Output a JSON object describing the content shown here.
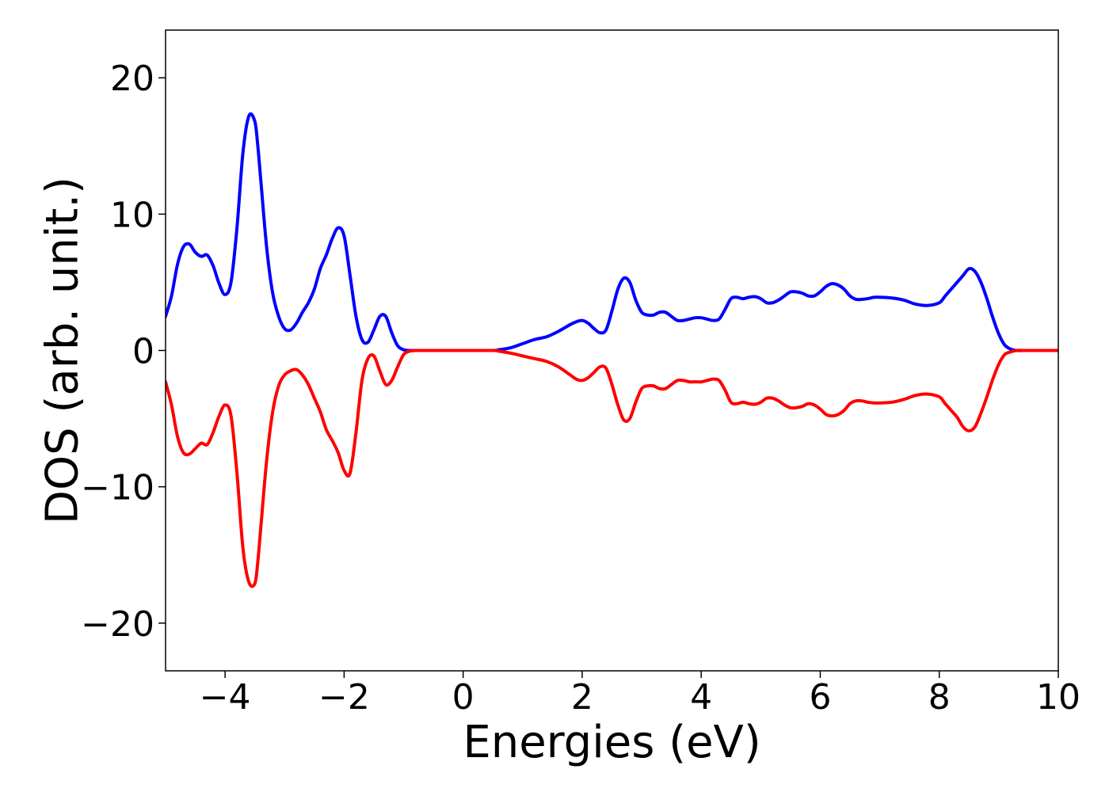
{
  "chart_data": {
    "type": "line",
    "title": "",
    "xlabel": "Energies (eV)",
    "ylabel": "DOS (arb. unit.)",
    "xlim": [
      -5,
      10
    ],
    "ylim": [
      -23.5,
      23.5
    ],
    "xticks": [
      -4,
      -2,
      0,
      2,
      4,
      6,
      8,
      10
    ],
    "yticks": [
      -20,
      -10,
      0,
      10,
      20
    ],
    "xtick_labels": [
      "−4",
      "−2",
      "0",
      "2",
      "4",
      "6",
      "8",
      "10"
    ],
    "ytick_labels": [
      "−20",
      "−10",
      "0",
      "10",
      "20"
    ],
    "grid": false,
    "legend": "none",
    "series": [
      {
        "color": "#0000ff",
        "x": [
          -5.0,
          -4.9,
          -4.8,
          -4.7,
          -4.6,
          -4.5,
          -4.4,
          -4.3,
          -4.2,
          -4.1,
          -4.0,
          -3.9,
          -3.8,
          -3.7,
          -3.6,
          -3.5,
          -3.45,
          -3.4,
          -3.3,
          -3.2,
          -3.1,
          -3.0,
          -2.9,
          -2.8,
          -2.7,
          -2.6,
          -2.5,
          -2.4,
          -2.3,
          -2.2,
          -2.1,
          -2.0,
          -1.9,
          -1.8,
          -1.7,
          -1.6,
          -1.5,
          -1.4,
          -1.3,
          -1.2,
          -1.1,
          -1.0,
          -0.9,
          -0.8,
          -0.7,
          -0.6,
          -0.5,
          -0.4,
          0.0,
          0.5,
          0.6,
          0.8,
          1.0,
          1.2,
          1.4,
          1.6,
          1.8,
          1.9,
          2.0,
          2.1,
          2.2,
          2.3,
          2.4,
          2.5,
          2.6,
          2.7,
          2.8,
          2.9,
          3.0,
          3.1,
          3.2,
          3.3,
          3.4,
          3.5,
          3.6,
          3.7,
          3.8,
          3.9,
          4.0,
          4.1,
          4.2,
          4.3,
          4.4,
          4.5,
          4.6,
          4.7,
          4.8,
          4.9,
          5.0,
          5.1,
          5.2,
          5.3,
          5.4,
          5.5,
          5.6,
          5.7,
          5.8,
          5.9,
          6.0,
          6.1,
          6.2,
          6.3,
          6.4,
          6.5,
          6.6,
          6.7,
          6.8,
          6.9,
          7.0,
          7.2,
          7.4,
          7.6,
          7.8,
          8.0,
          8.1,
          8.2,
          8.3,
          8.4,
          8.5,
          8.6,
          8.7,
          8.8,
          8.9,
          9.0,
          9.1,
          9.2,
          9.3,
          9.4,
          9.5,
          9.6,
          9.7,
          9.8,
          10.0
        ],
        "y": [
          2.5,
          4.0,
          6.3,
          7.6,
          7.8,
          7.2,
          6.9,
          7.0,
          6.2,
          4.9,
          4.1,
          5.0,
          9.0,
          14.5,
          17.2,
          16.8,
          15.0,
          12.5,
          7.5,
          4.2,
          2.5,
          1.6,
          1.5,
          2.0,
          2.8,
          3.5,
          4.5,
          6.0,
          7.0,
          8.2,
          9.0,
          8.4,
          5.5,
          2.5,
          0.8,
          0.6,
          1.5,
          2.5,
          2.5,
          1.3,
          0.35,
          0.05,
          0.0,
          0.0,
          0.0,
          0.0,
          0.0,
          0.0,
          0.0,
          0.0,
          0.05,
          0.2,
          0.5,
          0.8,
          1.0,
          1.4,
          1.9,
          2.1,
          2.2,
          2.0,
          1.6,
          1.3,
          1.5,
          2.9,
          4.5,
          5.3,
          5.0,
          3.7,
          2.8,
          2.6,
          2.6,
          2.8,
          2.8,
          2.5,
          2.2,
          2.2,
          2.3,
          2.4,
          2.4,
          2.3,
          2.2,
          2.3,
          3.0,
          3.8,
          3.9,
          3.8,
          3.9,
          3.95,
          3.8,
          3.5,
          3.5,
          3.7,
          4.0,
          4.3,
          4.3,
          4.2,
          4.0,
          4.0,
          4.3,
          4.7,
          4.9,
          4.8,
          4.5,
          4.0,
          3.75,
          3.75,
          3.8,
          3.9,
          3.9,
          3.85,
          3.7,
          3.4,
          3.3,
          3.5,
          4.0,
          4.5,
          5.0,
          5.5,
          6.0,
          5.8,
          5.0,
          3.8,
          2.4,
          1.2,
          0.4,
          0.1,
          0.0,
          0.0,
          0.0,
          0.0,
          0.0,
          0.0,
          0.0
        ]
      },
      {
        "color": "#ff0000",
        "x": [
          -5.0,
          -4.9,
          -4.8,
          -4.7,
          -4.6,
          -4.5,
          -4.4,
          -4.3,
          -4.2,
          -4.1,
          -4.0,
          -3.9,
          -3.8,
          -3.7,
          -3.6,
          -3.5,
          -3.45,
          -3.4,
          -3.3,
          -3.2,
          -3.1,
          -3.0,
          -2.9,
          -2.8,
          -2.7,
          -2.6,
          -2.5,
          -2.4,
          -2.3,
          -2.2,
          -2.1,
          -2.0,
          -1.9,
          -1.8,
          -1.7,
          -1.6,
          -1.5,
          -1.4,
          -1.3,
          -1.2,
          -1.1,
          -1.0,
          -0.9,
          -0.8,
          -0.7,
          -0.6,
          -0.5,
          -0.4,
          0.0,
          0.5,
          0.6,
          0.8,
          1.0,
          1.2,
          1.4,
          1.6,
          1.8,
          1.9,
          2.0,
          2.1,
          2.2,
          2.3,
          2.4,
          2.5,
          2.6,
          2.7,
          2.8,
          2.9,
          3.0,
          3.1,
          3.2,
          3.3,
          3.4,
          3.5,
          3.6,
          3.7,
          3.8,
          3.9,
          4.0,
          4.1,
          4.2,
          4.3,
          4.4,
          4.5,
          4.6,
          4.7,
          4.8,
          4.9,
          5.0,
          5.1,
          5.2,
          5.3,
          5.4,
          5.5,
          5.6,
          5.7,
          5.8,
          5.9,
          6.0,
          6.1,
          6.2,
          6.3,
          6.4,
          6.5,
          6.6,
          6.7,
          6.8,
          6.9,
          7.0,
          7.2,
          7.4,
          7.6,
          7.8,
          8.0,
          8.1,
          8.2,
          8.3,
          8.4,
          8.5,
          8.6,
          8.7,
          8.8,
          8.9,
          9.0,
          9.1,
          9.2,
          9.3,
          9.4,
          9.5,
          9.6,
          9.7,
          9.8,
          10.0
        ],
        "y": [
          -2.3,
          -4.0,
          -6.3,
          -7.5,
          -7.6,
          -7.2,
          -6.8,
          -6.9,
          -6.0,
          -4.8,
          -4.0,
          -4.8,
          -9.0,
          -14.5,
          -17.0,
          -17.1,
          -15.5,
          -13.0,
          -8.0,
          -4.5,
          -2.6,
          -1.8,
          -1.5,
          -1.4,
          -1.8,
          -2.5,
          -3.5,
          -4.5,
          -5.8,
          -6.6,
          -7.5,
          -8.8,
          -9.0,
          -6.0,
          -2.2,
          -0.6,
          -0.4,
          -1.5,
          -2.5,
          -2.2,
          -1.2,
          -0.3,
          -0.05,
          0.0,
          0.0,
          0.0,
          0.0,
          0.0,
          0.0,
          0.0,
          -0.05,
          -0.2,
          -0.4,
          -0.6,
          -0.8,
          -1.2,
          -1.8,
          -2.1,
          -2.2,
          -2.0,
          -1.6,
          -1.2,
          -1.3,
          -2.5,
          -4.0,
          -5.1,
          -5.0,
          -3.8,
          -2.8,
          -2.6,
          -2.6,
          -2.8,
          -2.8,
          -2.5,
          -2.2,
          -2.2,
          -2.3,
          -2.3,
          -2.3,
          -2.2,
          -2.1,
          -2.2,
          -2.9,
          -3.8,
          -3.9,
          -3.8,
          -3.9,
          -3.95,
          -3.8,
          -3.5,
          -3.5,
          -3.7,
          -4.0,
          -4.2,
          -4.2,
          -4.1,
          -3.9,
          -4.0,
          -4.3,
          -4.7,
          -4.8,
          -4.7,
          -4.4,
          -3.9,
          -3.7,
          -3.7,
          -3.8,
          -3.85,
          -3.85,
          -3.8,
          -3.6,
          -3.3,
          -3.2,
          -3.4,
          -3.9,
          -4.4,
          -4.9,
          -5.6,
          -5.9,
          -5.6,
          -4.6,
          -3.4,
          -2.1,
          -1.0,
          -0.3,
          -0.1,
          0.0,
          0.0,
          0.0,
          0.0,
          0.0,
          0.0,
          0.0
        ]
      }
    ]
  }
}
